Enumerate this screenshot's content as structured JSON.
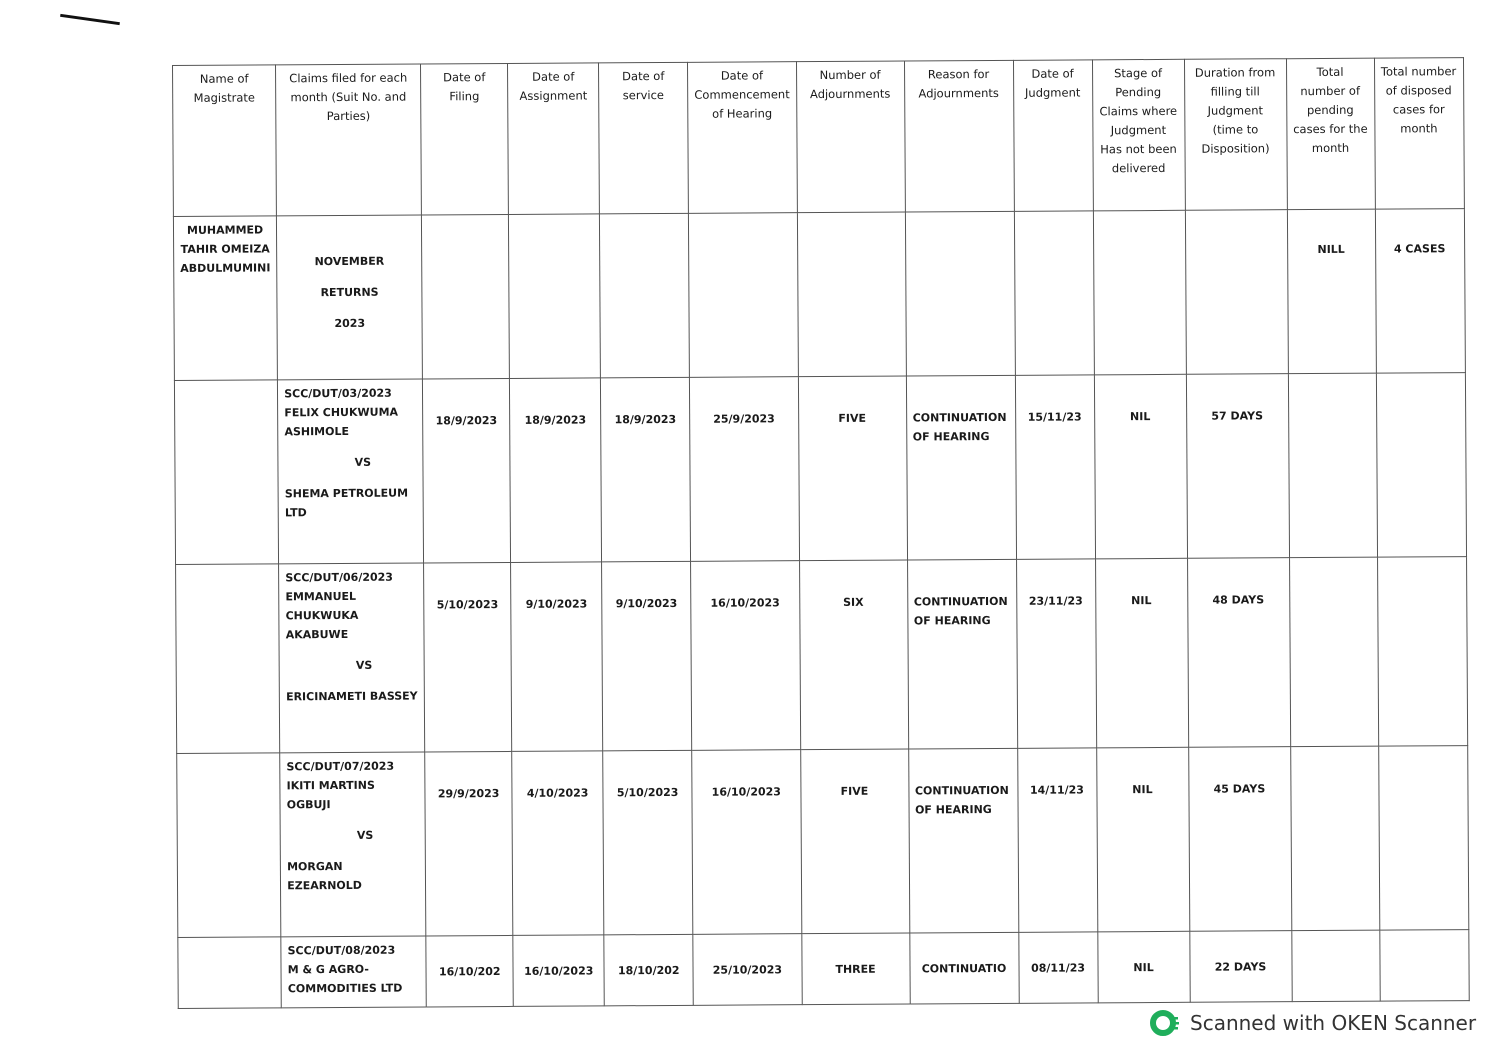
{
  "headers": [
    "Name of Magistrate",
    "Claims filed for each month (Suit No. and Parties)",
    "Date of Filing",
    "Date of Assignment",
    "Date of service",
    "Date of Commencement of Hearing",
    "Number of Adjournments",
    "Reason for Adjournments",
    "Date of Judgment",
    "Stage of Pending Claims where Judgment Has not been delivered",
    "Duration from filling till Judgment (time to Disposition)",
    "Total number of pending cases for the month",
    "Total number of disposed cases for month"
  ],
  "magistrate": {
    "name": "MUHAMMED TAHIR OMEIZA ABDULMUMINI",
    "month_line1": "NOVEMBER",
    "month_line2": "RETURNS",
    "month_line3": "2023",
    "pending_total": "NILL",
    "disposed_total": "4 CASES"
  },
  "cases": [
    {
      "suit": "SCC/DUT/03/2023",
      "claimant": "FELIX CHUKWUMA ASHIMOLE",
      "vs": "VS",
      "defendant": "SHEMA PETROLEUM LTD",
      "filing": "18/9/2023",
      "assignment": "18/9/2023",
      "service": "18/9/2023",
      "commencement": "25/9/2023",
      "adjournments": "FIVE",
      "reason": "CONTINUATION OF HEARING",
      "judgment": "15/11/23",
      "stage": "NIL",
      "duration": "57 DAYS"
    },
    {
      "suit": "SCC/DUT/06/2023",
      "claimant": "EMMANUEL CHUKWUKA AKABUWE",
      "vs": "VS",
      "defendant": "ERICINAMETI BASSEY",
      "filing": "5/10/2023",
      "assignment": "9/10/2023",
      "service": "9/10/2023",
      "commencement": "16/10/2023",
      "adjournments": "SIX",
      "reason": "CONTINUATION OF HEARING",
      "judgment": "23/11/23",
      "stage": "NIL",
      "duration": "48 DAYS"
    },
    {
      "suit": "SCC/DUT/07/2023",
      "claimant": "IKITI MARTINS OGBUJI",
      "vs": "VS",
      "defendant": "MORGAN EZEARNOLD",
      "filing": "29/9/2023",
      "assignment": "4/10/2023",
      "service": "5/10/2023",
      "commencement": "16/10/2023",
      "adjournments": "FIVE",
      "reason": "CONTINUATION OF HEARING",
      "judgment": "14/11/23",
      "stage": "NIL",
      "duration": "45 DAYS"
    },
    {
      "suit": "SCC/DUT/08/2023",
      "claimant": "M & G AGRO-COMMODITIES LTD",
      "vs": "",
      "defendant": "",
      "filing": "16/10/202",
      "assignment": "16/10/2023",
      "service": "18/10/202",
      "commencement": "25/10/2023",
      "adjournments": "THREE",
      "reason": "CONTINUATIO",
      "judgment": "08/11/23",
      "stage": "NIL",
      "duration": "22 DAYS"
    }
  ],
  "footer": {
    "text": "Scanned with OKEN Scanner",
    "brand_color": "#1fae5b"
  }
}
